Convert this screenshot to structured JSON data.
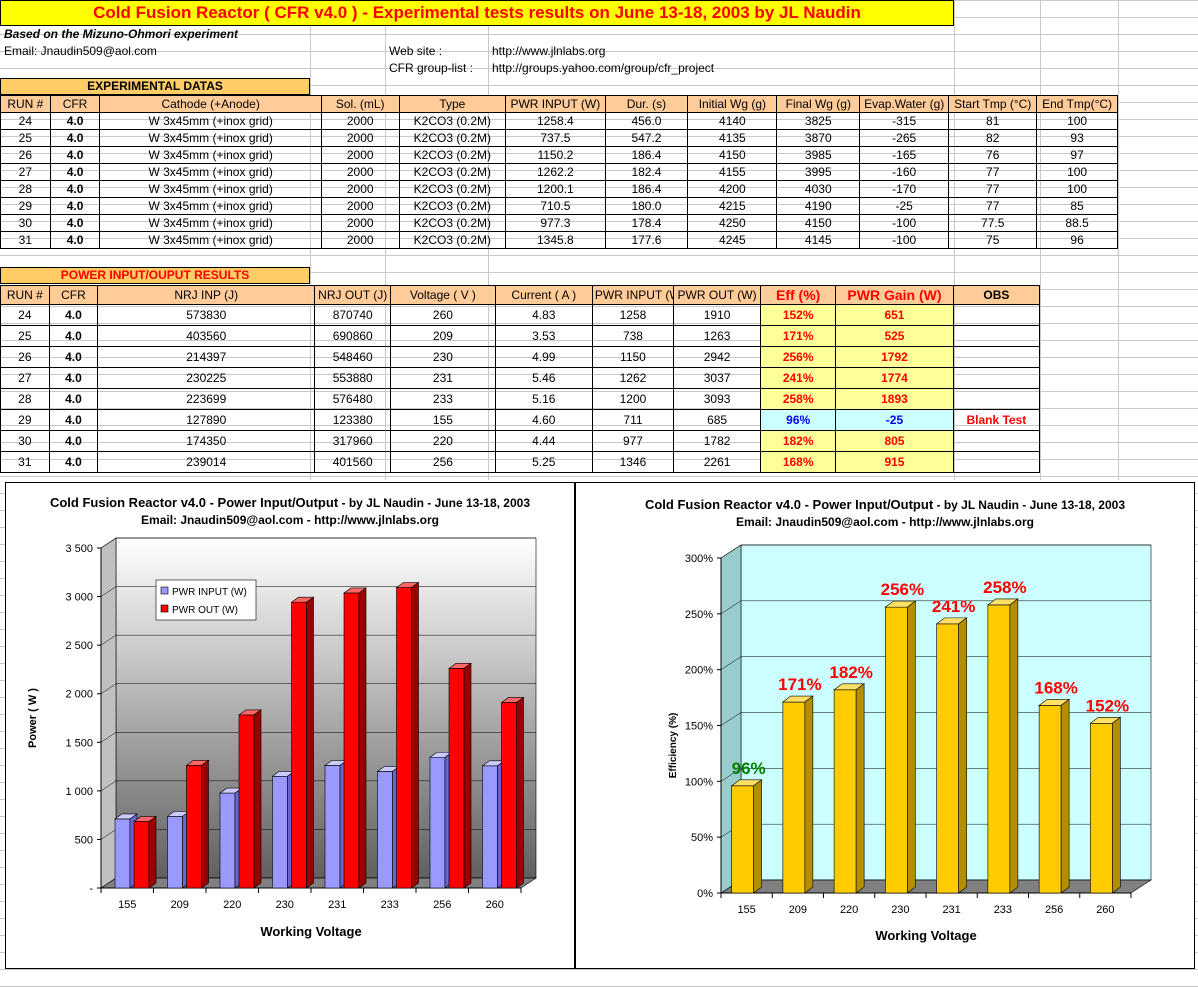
{
  "header": {
    "title": "Cold Fusion Reactor ( CFR v4.0 ) - Experimental tests results on June 13-18, 2003 by JL Naudin",
    "based_on": "Based on the Mizuno-Ohmori experiment",
    "email": "Email: Jnaudin509@aol.com",
    "website_label": "Web site :",
    "website_url": "http://www.jlnlabs.org",
    "group_label": "CFR group-list :",
    "group_url": "http://groups.yahoo.com/group/cfr_project"
  },
  "experimental": {
    "section_title": "EXPERIMENTAL DATAS",
    "columns": [
      "RUN #",
      "CFR",
      "Cathode (+Anode)",
      "Sol. (mL)",
      "Type",
      "PWR INPUT (W)",
      "Dur. (s)",
      "Initial Wg (g)",
      "Final Wg (g)",
      "Evap.Water (g)",
      "Start Tmp (°C)",
      "End Tmp(°C)"
    ],
    "rows": [
      [
        "24",
        "4.0",
        "W 3x45mm (+inox grid)",
        "2000",
        "K2CO3 (0.2M)",
        "1258.4",
        "456.0",
        "4140",
        "3825",
        "-315",
        "81",
        "100"
      ],
      [
        "25",
        "4.0",
        "W 3x45mm (+inox grid)",
        "2000",
        "K2CO3 (0.2M)",
        "737.5",
        "547.2",
        "4135",
        "3870",
        "-265",
        "82",
        "93"
      ],
      [
        "26",
        "4.0",
        "W 3x45mm (+inox grid)",
        "2000",
        "K2CO3 (0.2M)",
        "1150.2",
        "186.4",
        "4150",
        "3985",
        "-165",
        "76",
        "97"
      ],
      [
        "27",
        "4.0",
        "W 3x45mm (+inox grid)",
        "2000",
        "K2CO3 (0.2M)",
        "1262.2",
        "182.4",
        "4155",
        "3995",
        "-160",
        "77",
        "100"
      ],
      [
        "28",
        "4.0",
        "W 3x45mm (+inox grid)",
        "2000",
        "K2CO3 (0.2M)",
        "1200.1",
        "186.4",
        "4200",
        "4030",
        "-170",
        "77",
        "100"
      ],
      [
        "29",
        "4.0",
        "W 3x45mm (+inox grid)",
        "2000",
        "K2CO3 (0.2M)",
        "710.5",
        "180.0",
        "4215",
        "4190",
        "-25",
        "77",
        "85"
      ],
      [
        "30",
        "4.0",
        "W 3x45mm (+inox grid)",
        "2000",
        "K2CO3 (0.2M)",
        "977.3",
        "178.4",
        "4250",
        "4150",
        "-100",
        "77.5",
        "88.5"
      ],
      [
        "31",
        "4.0",
        "W 3x45mm (+inox grid)",
        "2000",
        "K2CO3 (0.2M)",
        "1345.8",
        "177.6",
        "4245",
        "4145",
        "-100",
        "75",
        "96"
      ]
    ]
  },
  "power": {
    "section_title": "POWER INPUT/OUPUT RESULTS",
    "columns": [
      "RUN #",
      "CFR",
      "NRJ INP (J)",
      "NRJ OUT (J)",
      "Voltage ( V )",
      "Current ( A )",
      "PWR INPUT (W)",
      "PWR OUT (W)",
      "Eff (%)",
      "PWR Gain (W)",
      "OBS"
    ],
    "rows": [
      [
        "24",
        "4.0",
        "573830",
        "870740",
        "260",
        "4.83",
        "1258",
        "1910",
        "152%",
        "651",
        ""
      ],
      [
        "25",
        "4.0",
        "403560",
        "690860",
        "209",
        "3.53",
        "738",
        "1263",
        "171%",
        "525",
        ""
      ],
      [
        "26",
        "4.0",
        "214397",
        "548460",
        "230",
        "4.99",
        "1150",
        "2942",
        "256%",
        "1792",
        ""
      ],
      [
        "27",
        "4.0",
        "230225",
        "553880",
        "231",
        "5.46",
        "1262",
        "3037",
        "241%",
        "1774",
        ""
      ],
      [
        "28",
        "4.0",
        "223699",
        "576480",
        "233",
        "5.16",
        "1200",
        "3093",
        "258%",
        "1893",
        ""
      ],
      [
        "29",
        "4.0",
        "127890",
        "123380",
        "155",
        "4.60",
        "711",
        "685",
        "96%",
        "-25",
        "Blank Test"
      ],
      [
        "30",
        "4.0",
        "174350",
        "317960",
        "220",
        "4.44",
        "977",
        "1782",
        "182%",
        "805",
        ""
      ],
      [
        "31",
        "4.0",
        "239014",
        "401560",
        "256",
        "5.25",
        "1346",
        "2261",
        "168%",
        "915",
        ""
      ]
    ],
    "blank_row_index": 5
  },
  "chart1": {
    "title": "Cold Fusion Reactor v4.0 - Power Input/Output",
    "title_by": " - by JL Naudin - June 13-18, 2003",
    "subtitle": "Email: Jnaudin509@aol.com - http://www.jlnlabs.org"
  },
  "chart2": {
    "title": "Cold Fusion Reactor v4.0 - Power Input/Output",
    "title_by": " - by JL Naudin - June 13-18, 2003",
    "subtitle": "Email: Jnaudin509@aol.com - http://www.jlnlabs.org"
  },
  "chart_data": [
    {
      "type": "bar",
      "categories": [
        "155",
        "209",
        "220",
        "230",
        "231",
        "233",
        "256",
        "260"
      ],
      "series": [
        {
          "name": "PWR INPUT (W)",
          "color": "#9999ff",
          "values": [
            711,
            738,
            977,
            1150,
            1262,
            1200,
            1346,
            1258
          ]
        },
        {
          "name": "PWR OUT (W)",
          "color": "#ff0000",
          "values": [
            685,
            1263,
            1782,
            2942,
            3037,
            3093,
            2261,
            1910
          ]
        }
      ],
      "xlabel": "Working Voltage",
      "ylabel": "Power ( W )",
      "ylim": [
        0,
        3500
      ],
      "yticks": [
        "-",
        "500",
        "1 000",
        "1 500",
        "2 000",
        "2 500",
        "3 000",
        "3 500"
      ],
      "legend": "top-left",
      "grid": true
    },
    {
      "type": "bar",
      "categories": [
        "155",
        "209",
        "220",
        "230",
        "231",
        "233",
        "256",
        "260"
      ],
      "series": [
        {
          "color": "#ffcc00",
          "values": [
            96,
            171,
            182,
            256,
            241,
            258,
            168,
            152
          ]
        }
      ],
      "data_labels": [
        "96%",
        "171%",
        "182%",
        "256%",
        "241%",
        "258%",
        "168%",
        "152%"
      ],
      "label_colors": [
        "#008000",
        "#ff0000",
        "#ff0000",
        "#ff0000",
        "#ff0000",
        "#ff0000",
        "#ff0000",
        "#ff0000"
      ],
      "xlabel": "Working Voltage",
      "ylabel": "Efficiency (%)",
      "ylim": [
        0,
        300
      ],
      "yticks": [
        "0%",
        "50%",
        "100%",
        "150%",
        "200%",
        "250%",
        "300%"
      ],
      "background": "#ccffff",
      "grid": true
    }
  ]
}
